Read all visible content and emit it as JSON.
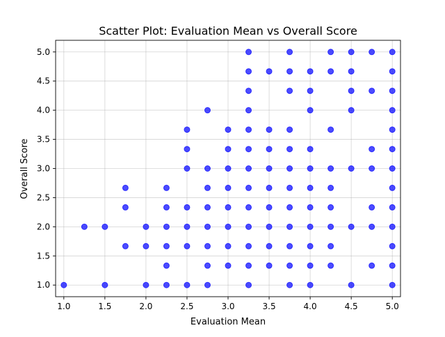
{
  "chart_data": {
    "type": "scatter",
    "title": "Scatter Plot: Evaluation Mean vs Overall Score",
    "xlabel": "Evaluation Mean",
    "ylabel": "Overall Score",
    "xlim": [
      0.9,
      5.1
    ],
    "ylim": [
      0.8,
      5.2
    ],
    "xticks": [
      "1.0",
      "1.5",
      "2.0",
      "2.5",
      "3.0",
      "3.5",
      "4.0",
      "4.5",
      "5.0"
    ],
    "yticks": [
      "1.0",
      "1.5",
      "2.0",
      "2.5",
      "3.0",
      "3.5",
      "4.0",
      "4.5",
      "5.0"
    ],
    "grid": true,
    "marker_color": "#0000ff",
    "marker_alpha": 0.7,
    "points": [
      [
        1.0,
        1.0
      ],
      [
        1.25,
        2.0
      ],
      [
        1.5,
        1.0
      ],
      [
        1.5,
        2.0
      ],
      [
        1.75,
        1.667
      ],
      [
        1.75,
        2.333
      ],
      [
        1.75,
        2.667
      ],
      [
        2.0,
        1.0
      ],
      [
        2.0,
        1.667
      ],
      [
        2.0,
        2.0
      ],
      [
        2.25,
        1.0
      ],
      [
        2.25,
        1.333
      ],
      [
        2.25,
        1.667
      ],
      [
        2.25,
        2.0
      ],
      [
        2.25,
        2.333
      ],
      [
        2.25,
        2.667
      ],
      [
        2.5,
        1.0
      ],
      [
        2.5,
        1.667
      ],
      [
        2.5,
        2.0
      ],
      [
        2.5,
        2.333
      ],
      [
        2.5,
        3.0
      ],
      [
        2.5,
        3.333
      ],
      [
        2.5,
        3.667
      ],
      [
        2.75,
        1.0
      ],
      [
        2.75,
        1.333
      ],
      [
        2.75,
        1.667
      ],
      [
        2.75,
        2.0
      ],
      [
        2.75,
        2.333
      ],
      [
        2.75,
        2.667
      ],
      [
        2.75,
        3.0
      ],
      [
        2.75,
        4.0
      ],
      [
        3.0,
        1.333
      ],
      [
        3.0,
        1.667
      ],
      [
        3.0,
        2.0
      ],
      [
        3.0,
        2.333
      ],
      [
        3.0,
        2.667
      ],
      [
        3.0,
        3.0
      ],
      [
        3.0,
        3.333
      ],
      [
        3.0,
        3.667
      ],
      [
        3.25,
        1.0
      ],
      [
        3.25,
        1.333
      ],
      [
        3.25,
        1.667
      ],
      [
        3.25,
        2.0
      ],
      [
        3.25,
        2.333
      ],
      [
        3.25,
        2.667
      ],
      [
        3.25,
        3.0
      ],
      [
        3.25,
        3.333
      ],
      [
        3.25,
        3.667
      ],
      [
        3.25,
        4.0
      ],
      [
        3.25,
        4.333
      ],
      [
        3.25,
        4.667
      ],
      [
        3.25,
        5.0
      ],
      [
        3.5,
        1.333
      ],
      [
        3.5,
        1.667
      ],
      [
        3.5,
        2.0
      ],
      [
        3.5,
        2.333
      ],
      [
        3.5,
        2.667
      ],
      [
        3.5,
        3.0
      ],
      [
        3.5,
        3.333
      ],
      [
        3.5,
        3.667
      ],
      [
        3.5,
        4.667
      ],
      [
        3.75,
        1.0
      ],
      [
        3.75,
        1.333
      ],
      [
        3.75,
        1.667
      ],
      [
        3.75,
        2.0
      ],
      [
        3.75,
        2.333
      ],
      [
        3.75,
        2.667
      ],
      [
        3.75,
        3.0
      ],
      [
        3.75,
        3.333
      ],
      [
        3.75,
        3.667
      ],
      [
        3.75,
        4.333
      ],
      [
        3.75,
        4.667
      ],
      [
        3.75,
        5.0
      ],
      [
        4.0,
        1.0
      ],
      [
        4.0,
        1.333
      ],
      [
        4.0,
        1.667
      ],
      [
        4.0,
        2.0
      ],
      [
        4.0,
        2.333
      ],
      [
        4.0,
        2.667
      ],
      [
        4.0,
        3.0
      ],
      [
        4.0,
        3.333
      ],
      [
        4.0,
        4.0
      ],
      [
        4.0,
        4.333
      ],
      [
        4.0,
        4.667
      ],
      [
        4.25,
        1.333
      ],
      [
        4.25,
        1.667
      ],
      [
        4.25,
        2.0
      ],
      [
        4.25,
        2.333
      ],
      [
        4.25,
        2.667
      ],
      [
        4.25,
        3.0
      ],
      [
        4.25,
        3.667
      ],
      [
        4.25,
        4.667
      ],
      [
        4.25,
        5.0
      ],
      [
        4.5,
        1.0
      ],
      [
        4.5,
        2.0
      ],
      [
        4.5,
        3.0
      ],
      [
        4.5,
        4.0
      ],
      [
        4.5,
        4.333
      ],
      [
        4.5,
        4.667
      ],
      [
        4.5,
        5.0
      ],
      [
        4.75,
        1.333
      ],
      [
        4.75,
        2.0
      ],
      [
        4.75,
        2.333
      ],
      [
        4.75,
        3.0
      ],
      [
        4.75,
        3.333
      ],
      [
        4.75,
        4.333
      ],
      [
        4.75,
        5.0
      ],
      [
        5.0,
        1.0
      ],
      [
        5.0,
        1.333
      ],
      [
        5.0,
        1.667
      ],
      [
        5.0,
        2.0
      ],
      [
        5.0,
        2.333
      ],
      [
        5.0,
        2.667
      ],
      [
        5.0,
        3.0
      ],
      [
        5.0,
        3.333
      ],
      [
        5.0,
        3.667
      ],
      [
        5.0,
        4.0
      ],
      [
        5.0,
        4.333
      ],
      [
        5.0,
        4.667
      ],
      [
        5.0,
        5.0
      ]
    ]
  }
}
